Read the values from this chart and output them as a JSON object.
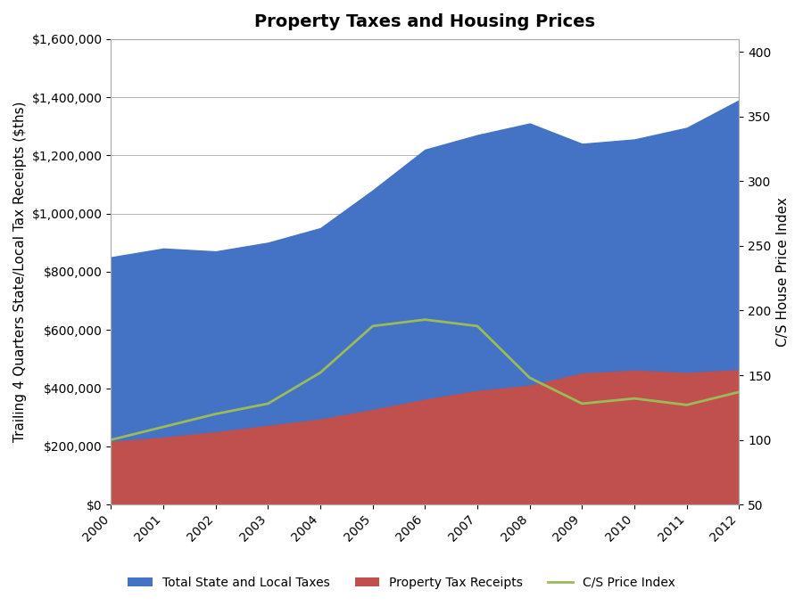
{
  "title": "Property Taxes and Housing Prices",
  "ylabel_left": "Trailing 4 Quarters State/Local Tax Receipts ($ths)",
  "ylabel_right": "C/S House Price Index",
  "years": [
    2000,
    2001,
    2002,
    2003,
    2004,
    2005,
    2006,
    2007,
    2008,
    2009,
    2010,
    2011,
    2012
  ],
  "total_state_local": [
    850000,
    880000,
    870000,
    900000,
    950000,
    1080000,
    1220000,
    1270000,
    1310000,
    1240000,
    1255000,
    1295000,
    1390000
  ],
  "property_tax": [
    215000,
    230000,
    248000,
    270000,
    292000,
    325000,
    360000,
    390000,
    408000,
    450000,
    460000,
    452000,
    462000
  ],
  "cs_price_index": [
    100,
    110,
    120,
    128,
    152,
    188,
    193,
    188,
    148,
    128,
    132,
    127,
    137
  ],
  "color_blue": "#4472C4",
  "color_red": "#C0504D",
  "color_green": "#9BBB59",
  "legend_labels": [
    "Total State and Local Taxes",
    "Property Tax Receipts",
    "C/S Price Index"
  ],
  "ylim_left": [
    0,
    1600000
  ],
  "ylim_right": [
    50,
    410
  ],
  "yticks_left": [
    0,
    200000,
    400000,
    600000,
    800000,
    1000000,
    1200000,
    1400000,
    1600000
  ],
  "yticks_right": [
    50,
    100,
    150,
    200,
    250,
    300,
    350,
    400
  ],
  "title_fontsize": 14,
  "tick_fontsize": 10,
  "label_fontsize": 11
}
